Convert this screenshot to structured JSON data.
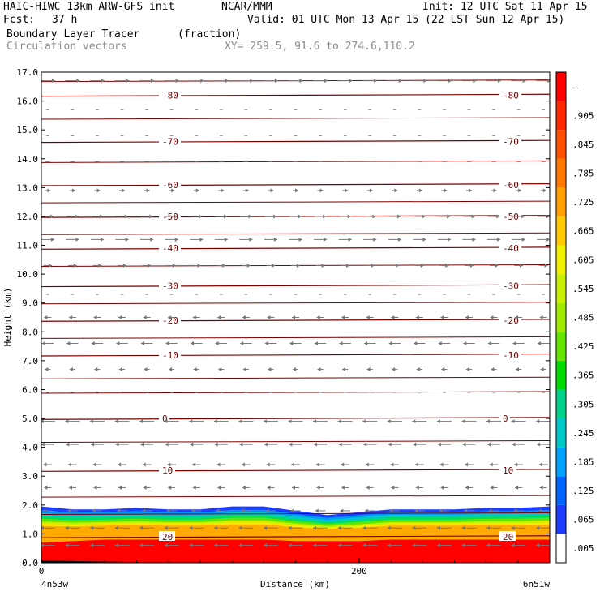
{
  "header": {
    "model": "HAIC-HIWC 13km ARW-GFS init",
    "org": "NCAR/MMM",
    "init": "Init: 12 UTC Sat 11 Apr 15",
    "fcst_label": "Fcst:",
    "fcst_value": "37 h",
    "valid": "Valid: 01 UTC Mon 13 Apr 15 (22 LST Sun 12 Apr 15)",
    "field": "Boundary Layer Tracer",
    "field_units": "(fraction)",
    "vectors": "Circulation vectors",
    "xy": "XY= 259.5, 91.6 to 274.6,110.2"
  },
  "chart_data": {
    "type": "heatmap",
    "xlabel": "Distance (km)",
    "ylabel": "Height (km)",
    "xlim": [
      0,
      320
    ],
    "ylim": [
      0.0,
      17.0
    ],
    "x_ticks": [
      "0",
      "200"
    ],
    "y_ticks": [
      "0.0",
      "1.0",
      "2.0",
      "3.0",
      "4.0",
      "5.0",
      "6.0",
      "7.0",
      "8.0",
      "9.0",
      "10.0",
      "11.0",
      "12.0",
      "13.0",
      "14.0",
      "15.0",
      "16.0",
      "17.0"
    ],
    "x_endpoints": [
      "4n53w",
      "6n51w"
    ],
    "colorbar": {
      "labels": [
        ".005",
        ".065",
        ".125",
        ".185",
        ".245",
        ".305",
        ".365",
        ".425",
        ".485",
        ".545",
        ".605",
        ".665",
        ".725",
        ".785",
        ".845",
        ".905",
        "–"
      ],
      "colors": [
        "#ffffff",
        "#1e3cff",
        "#0064ff",
        "#00a0ff",
        "#00c8c8",
        "#00d28c",
        "#00dc00",
        "#64e600",
        "#a0eb00",
        "#c8f000",
        "#f0f000",
        "#ffc800",
        "#ffa000",
        "#ff7800",
        "#ff5000",
        "#ff2800",
        "#ff0000"
      ]
    },
    "isotherms_c": [
      -80,
      -70,
      -60,
      -50,
      -40,
      -30,
      -20,
      -10,
      0,
      10,
      20
    ],
    "isotherm_heights_km": [
      16.2,
      14.6,
      13.1,
      12.0,
      10.9,
      9.6,
      8.4,
      7.2,
      5.0,
      3.2,
      0.9
    ],
    "tracer_profile": {
      "x_km": [
        0,
        20,
        40,
        60,
        80,
        100,
        120,
        140,
        160,
        180,
        200,
        220,
        240,
        260,
        280,
        300,
        320
      ],
      "top_km": [
        1.95,
        1.85,
        1.85,
        1.9,
        1.85,
        1.85,
        1.95,
        1.95,
        1.8,
        1.65,
        1.75,
        1.85,
        1.85,
        1.85,
        1.9,
        1.9,
        1.95
      ],
      "red_top_km": [
        0.7,
        0.75,
        0.8,
        0.8,
        0.8,
        0.8,
        0.8,
        0.8,
        0.75,
        0.75,
        0.75,
        0.8,
        0.8,
        0.8,
        0.8,
        0.8,
        0.8
      ]
    },
    "wind_levels_km": [
      {
        "z": 16.7,
        "u": 1
      },
      {
        "z": 15.7,
        "u": 0.2
      },
      {
        "z": 14.8,
        "u": 0.2
      },
      {
        "z": 13.9,
        "u": 0.3
      },
      {
        "z": 12.9,
        "u": 0.4
      },
      {
        "z": 12.0,
        "u": 0.8
      },
      {
        "z": 11.2,
        "u": 0.9
      },
      {
        "z": 10.3,
        "u": 0.6
      },
      {
        "z": 9.3,
        "u": 0.2
      },
      {
        "z": 8.5,
        "u": -0.5
      },
      {
        "z": 7.6,
        "u": -0.8
      },
      {
        "z": 6.7,
        "u": -0.4
      },
      {
        "z": 5.9,
        "u": -0.2
      },
      {
        "z": 4.9,
        "u": -1
      },
      {
        "z": 4.1,
        "u": -0.9
      },
      {
        "z": 3.4,
        "u": -0.6
      },
      {
        "z": 2.6,
        "u": -0.5
      },
      {
        "z": 1.8,
        "u": -0.7
      },
      {
        "z": 1.2,
        "u": -1
      },
      {
        "z": 0.6,
        "u": -1
      }
    ]
  }
}
